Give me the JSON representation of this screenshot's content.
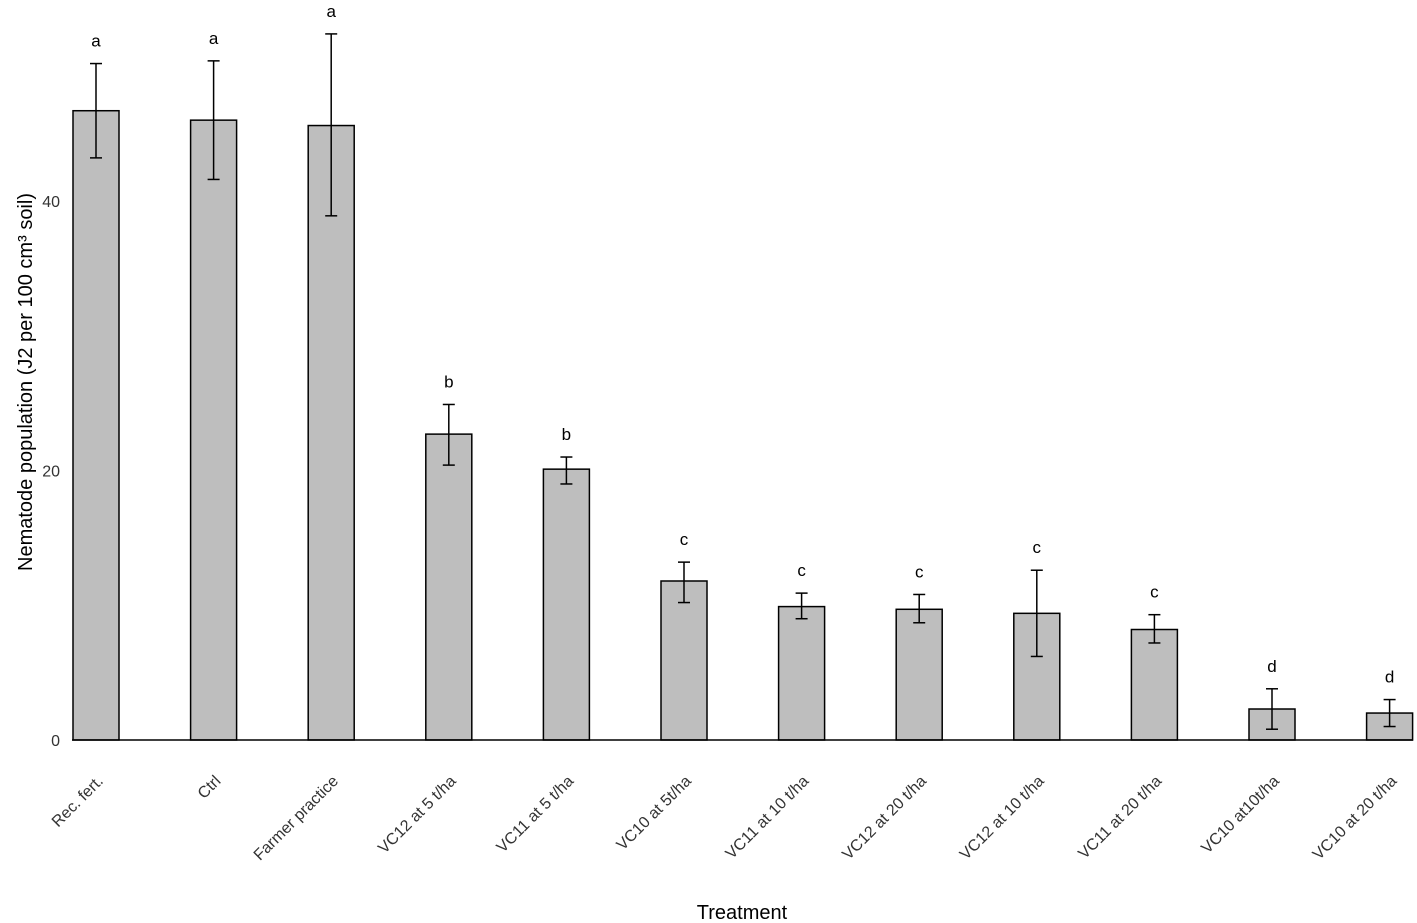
{
  "chart_data": {
    "type": "bar",
    "xlabel": "Treatment",
    "ylabel": "Nematode population (J2 per 100 cm³ soil)",
    "ylim": [
      0,
      55
    ],
    "yticks": [
      0,
      20,
      40
    ],
    "grid": false,
    "legend": "none",
    "bar_color": "#bebebe",
    "categories": [
      "Rec. fert.",
      "Ctrl",
      "Farmer practice",
      "VC12 at 5 t/ha",
      "VC11 at 5 t/ha",
      "VC10 at 5t/ha",
      "VC11 at 10 t/ha",
      "VC12 at 20 t/ha",
      "VC12 at 10 t/ha",
      "VC11 at 20 t/ha",
      "VC10 at10t/ha",
      "VC10 at 20 t/ha"
    ],
    "values": [
      46.7,
      46.0,
      45.6,
      22.7,
      20.1,
      11.8,
      9.9,
      9.7,
      9.4,
      8.2,
      2.3,
      2.0
    ],
    "error_high": [
      50.2,
      50.4,
      52.4,
      24.9,
      21.0,
      13.2,
      10.9,
      10.8,
      12.6,
      9.3,
      3.8,
      3.0
    ],
    "error_low": [
      43.2,
      41.6,
      38.9,
      20.4,
      19.0,
      10.2,
      9.0,
      8.7,
      6.2,
      7.2,
      0.8,
      1.0
    ],
    "significance": [
      "a",
      "a",
      "a",
      "b",
      "b",
      "c",
      "c",
      "c",
      "c",
      "c",
      "d",
      "d"
    ]
  }
}
